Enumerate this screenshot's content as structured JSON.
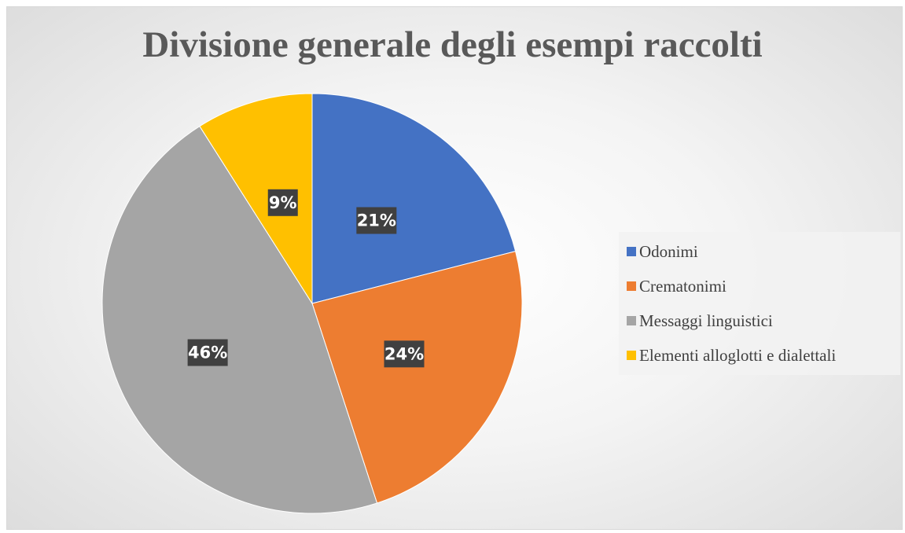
{
  "chart_data": {
    "type": "pie",
    "title": "Divisione generale degli esempi raccolti",
    "categories": [
      "Odonimi",
      "Crematonimi",
      "Messaggi linguistici",
      "Elementi alloglotti e dialettali"
    ],
    "values": [
      21,
      24,
      46,
      9
    ],
    "data_labels": [
      "21%",
      "24%",
      "46%",
      "9%"
    ],
    "colors": [
      "#4472C4",
      "#ED7D31",
      "#A5A5A5",
      "#FFC000"
    ],
    "legend_position": "right",
    "start_angle": "12 o'clock, clockwise"
  }
}
